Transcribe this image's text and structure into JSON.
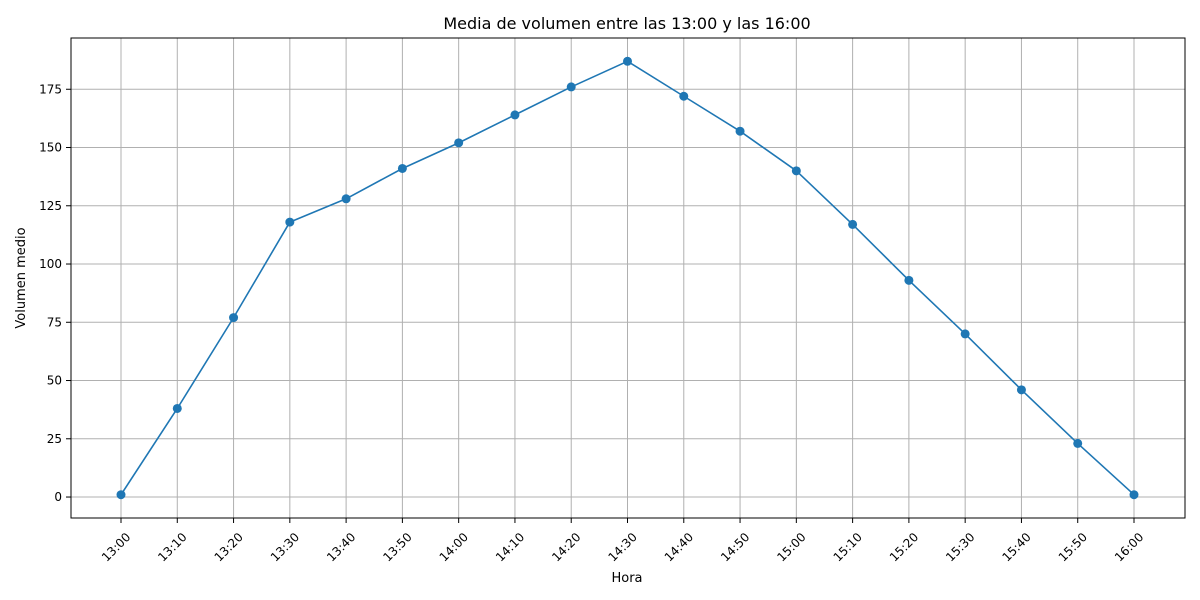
{
  "chart_data": {
    "type": "line",
    "title": "Media de volumen entre las 13:00 y las 16:00",
    "xlabel": "Hora",
    "ylabel": "Volumen medio",
    "categories": [
      "13:00",
      "13:10",
      "13:20",
      "13:30",
      "13:40",
      "13:50",
      "14:00",
      "14:10",
      "14:20",
      "14:30",
      "14:40",
      "14:50",
      "15:00",
      "15:10",
      "15:20",
      "15:30",
      "15:40",
      "15:50",
      "16:00"
    ],
    "series": [
      {
        "values": [
          1,
          38,
          77,
          118,
          128,
          141,
          152,
          164,
          176,
          187,
          172,
          157,
          140,
          117,
          93,
          70,
          46,
          23,
          1
        ],
        "color": "#1f77b4",
        "marker": "circle"
      }
    ],
    "ylim": [
      -9,
      197
    ],
    "yticks": [
      0,
      25,
      50,
      75,
      100,
      125,
      150,
      175
    ],
    "grid": true
  }
}
